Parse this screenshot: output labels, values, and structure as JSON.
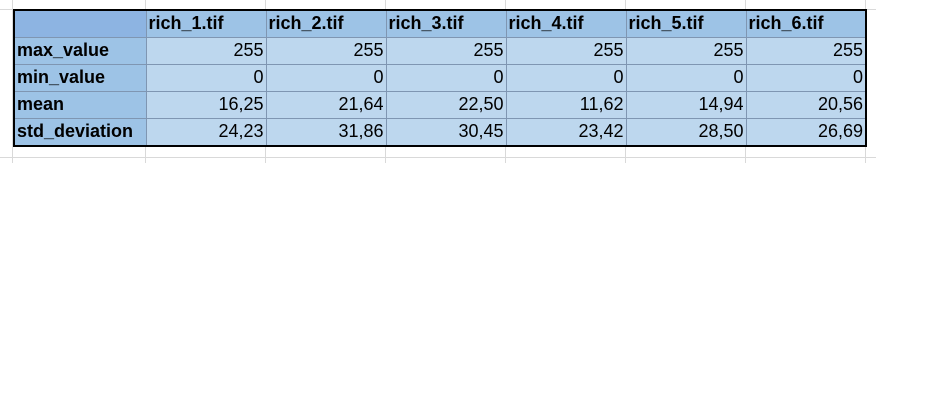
{
  "table": {
    "columns": [
      "rich_1.tif",
      "rich_2.tif",
      "rich_3.tif",
      "rich_4.tif",
      "rich_5.tif",
      "rich_6.tif"
    ],
    "rows": [
      {
        "label": "max_value",
        "values": [
          "255",
          "255",
          "255",
          "255",
          "255",
          "255"
        ]
      },
      {
        "label": "min_value",
        "values": [
          "0",
          "0",
          "0",
          "0",
          "0",
          "0"
        ]
      },
      {
        "label": "mean",
        "values": [
          "16,25",
          "21,64",
          "22,50",
          "11,62",
          "14,94",
          "20,56"
        ]
      },
      {
        "label": "std_deviation",
        "values": [
          "24,23",
          "31,86",
          "30,45",
          "23,42",
          "28,50",
          "26,69"
        ]
      }
    ]
  },
  "colors": {
    "header_fill": "#9dc3e6",
    "cell_fill": "#bdd7ee",
    "border": "#000000"
  }
}
